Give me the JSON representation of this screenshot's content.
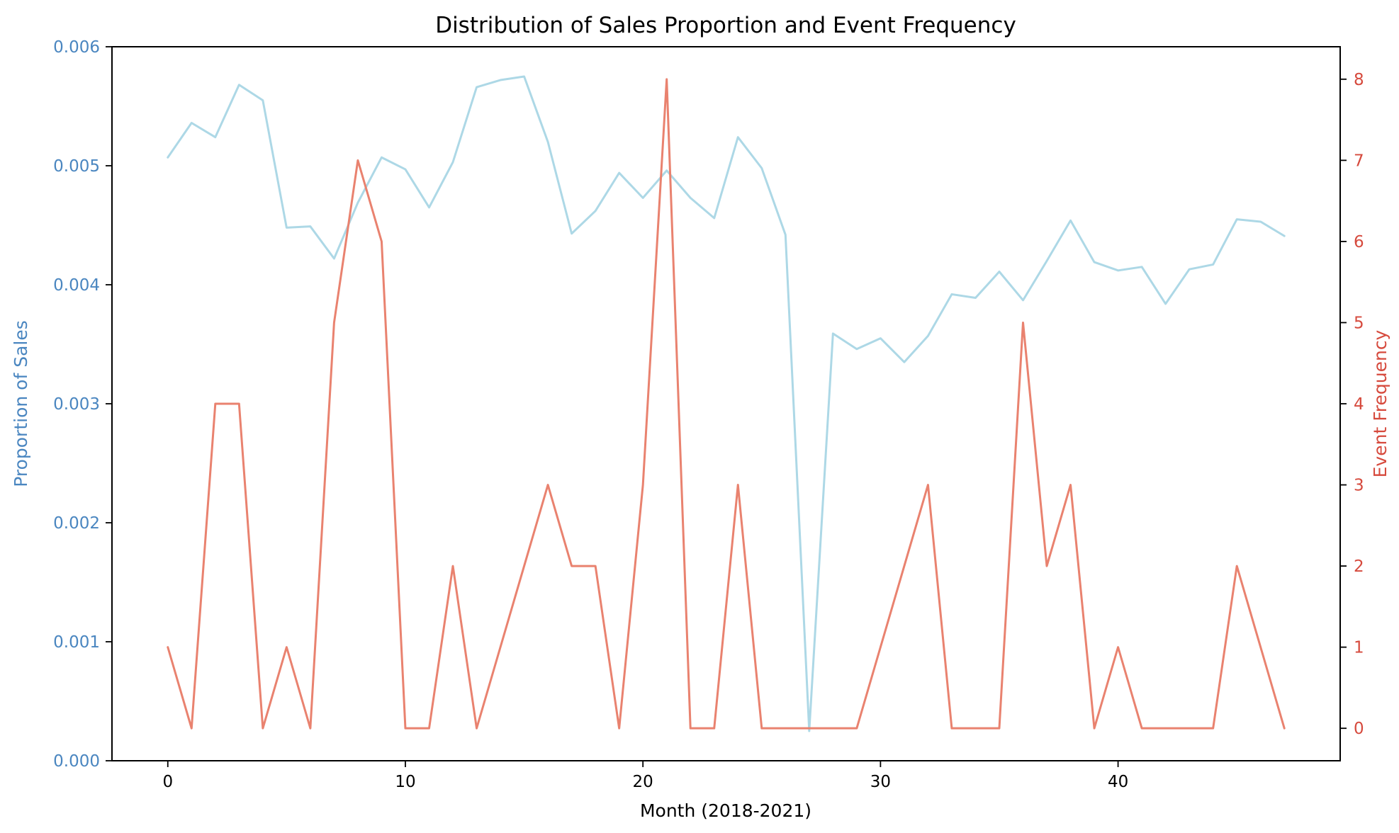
{
  "chart_data": {
    "type": "line",
    "title": "Distribution of Sales Proportion and Event Frequency",
    "xlabel": "Month (2018-2021)",
    "ylabel_left": "Proportion of Sales",
    "ylabel_right": "Event Frequency",
    "xlim": [
      -2.35,
      49.35
    ],
    "ylim_left": [
      0,
      0.006
    ],
    "ylim_right": [
      -0.4,
      8.4
    ],
    "x_ticks": [
      0,
      10,
      20,
      30,
      40
    ],
    "y_left_ticks": [
      0.0,
      0.001,
      0.002,
      0.003,
      0.004,
      0.005,
      0.006
    ],
    "y_left_tick_labels": [
      "0.000",
      "0.001",
      "0.002",
      "0.003",
      "0.004",
      "0.005",
      "0.006"
    ],
    "y_right_ticks": [
      0,
      1,
      2,
      3,
      4,
      5,
      6,
      7,
      8
    ],
    "grid": false,
    "legend": "none",
    "colors": {
      "left_axis": "#4a86c0",
      "right_axis": "#d64a3d",
      "sales_line": "#add8e6",
      "event_line": "#e9826f"
    },
    "x": [
      0,
      1,
      2,
      3,
      4,
      5,
      6,
      7,
      8,
      9,
      10,
      11,
      12,
      13,
      14,
      15,
      16,
      17,
      18,
      19,
      20,
      21,
      22,
      23,
      24,
      25,
      26,
      27,
      28,
      29,
      30,
      31,
      32,
      33,
      34,
      35,
      36,
      37,
      38,
      39,
      40,
      41,
      42,
      43,
      44,
      45,
      46,
      47
    ],
    "series": [
      {
        "axis": "left",
        "values": [
          0.00507,
          0.00536,
          0.00524,
          0.00568,
          0.00555,
          0.00448,
          0.00449,
          0.00422,
          0.00469,
          0.00507,
          0.00497,
          0.00465,
          0.00503,
          0.00566,
          0.00572,
          0.00575,
          0.0052,
          0.00443,
          0.00462,
          0.00494,
          0.00473,
          0.00496,
          0.00473,
          0.00456,
          0.00524,
          0.00498,
          0.00442,
          0.00025,
          0.00359,
          0.00346,
          0.00355,
          0.00335,
          0.00357,
          0.00392,
          0.00389,
          0.00411,
          0.00387,
          0.0042,
          0.00454,
          0.00419,
          0.00412,
          0.00415,
          0.00384,
          0.00413,
          0.00417,
          0.00455,
          0.00453,
          0.00441
        ]
      },
      {
        "axis": "right",
        "values": [
          1,
          0,
          4,
          4,
          0,
          1,
          0,
          5,
          7,
          6,
          0,
          0,
          2,
          0,
          1,
          2,
          3,
          2,
          2,
          0,
          3,
          8,
          0,
          0,
          3,
          0,
          0,
          0,
          0,
          0,
          1,
          2,
          3,
          0,
          0,
          0,
          5,
          2,
          3,
          0,
          1,
          0,
          0,
          0,
          0,
          2,
          1,
          0
        ]
      }
    ]
  }
}
